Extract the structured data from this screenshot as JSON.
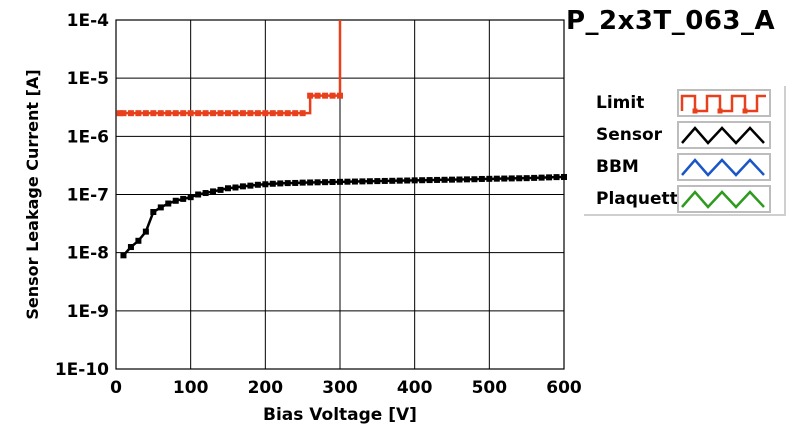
{
  "chart_data": {
    "type": "line",
    "title": "P_2x3T_063_A",
    "xlabel": "Bias Voltage [V]",
    "ylabel": "Sensor Leakage Current [A]",
    "x_scale": "linear",
    "y_scale": "log",
    "xlim": [
      0,
      600
    ],
    "ylim": [
      1e-10,
      0.0001
    ],
    "grid": true,
    "legend_position": "right",
    "x_ticks": [
      {
        "value": 0,
        "label": "0"
      },
      {
        "value": 100,
        "label": "100"
      },
      {
        "value": 200,
        "label": "200"
      },
      {
        "value": 300,
        "label": "300"
      },
      {
        "value": 400,
        "label": "400"
      },
      {
        "value": 500,
        "label": "500"
      },
      {
        "value": 600,
        "label": "600"
      }
    ],
    "y_ticks": [
      {
        "value": 0.0001,
        "label": "1E-4"
      },
      {
        "value": 1e-05,
        "label": "1E-5"
      },
      {
        "value": 1e-06,
        "label": "1E-6"
      },
      {
        "value": 1e-07,
        "label": "1E-7"
      },
      {
        "value": 1e-08,
        "label": "1E-8"
      },
      {
        "value": 1e-09,
        "label": "1E-9"
      },
      {
        "value": 1e-10,
        "label": "1E-10"
      }
    ],
    "series": [
      {
        "name": "Limit",
        "color": "#e8401c",
        "step": true,
        "points": [
          [
            5,
            2.5e-06
          ],
          [
            10,
            2.5e-06
          ],
          [
            20,
            2.5e-06
          ],
          [
            30,
            2.5e-06
          ],
          [
            40,
            2.5e-06
          ],
          [
            50,
            2.5e-06
          ],
          [
            60,
            2.5e-06
          ],
          [
            70,
            2.5e-06
          ],
          [
            80,
            2.5e-06
          ],
          [
            90,
            2.5e-06
          ],
          [
            100,
            2.5e-06
          ],
          [
            110,
            2.5e-06
          ],
          [
            120,
            2.5e-06
          ],
          [
            130,
            2.5e-06
          ],
          [
            140,
            2.5e-06
          ],
          [
            150,
            2.5e-06
          ],
          [
            160,
            2.5e-06
          ],
          [
            170,
            2.5e-06
          ],
          [
            180,
            2.5e-06
          ],
          [
            190,
            2.5e-06
          ],
          [
            200,
            2.5e-06
          ],
          [
            210,
            2.5e-06
          ],
          [
            220,
            2.5e-06
          ],
          [
            230,
            2.5e-06
          ],
          [
            240,
            2.5e-06
          ],
          [
            250,
            2.5e-06
          ],
          [
            260,
            5e-06
          ],
          [
            270,
            5e-06
          ],
          [
            280,
            5e-06
          ],
          [
            290,
            5e-06
          ],
          [
            300,
            5e-06
          ],
          [
            300,
            0.0001
          ]
        ]
      },
      {
        "name": "Sensor",
        "color": "#000000",
        "step": false,
        "points": [
          [
            10,
            9e-09
          ],
          [
            20,
            1.25e-08
          ],
          [
            30,
            1.6e-08
          ],
          [
            40,
            2.3e-08
          ],
          [
            50,
            5e-08
          ],
          [
            60,
            6e-08
          ],
          [
            70,
            7e-08
          ],
          [
            80,
            7.8e-08
          ],
          [
            90,
            8.4e-08
          ],
          [
            100,
            9e-08
          ],
          [
            110,
            1e-07
          ],
          [
            120,
            1.06e-07
          ],
          [
            130,
            1.13e-07
          ],
          [
            140,
            1.2e-07
          ],
          [
            150,
            1.28e-07
          ],
          [
            160,
            1.32e-07
          ],
          [
            170,
            1.38e-07
          ],
          [
            180,
            1.42e-07
          ],
          [
            190,
            1.47e-07
          ],
          [
            200,
            1.5e-07
          ],
          [
            210,
            1.53e-07
          ],
          [
            220,
            1.55e-07
          ],
          [
            230,
            1.57e-07
          ],
          [
            240,
            1.58e-07
          ],
          [
            250,
            1.6e-07
          ],
          [
            260,
            1.61e-07
          ],
          [
            270,
            1.62e-07
          ],
          [
            280,
            1.63e-07
          ],
          [
            290,
            1.64e-07
          ],
          [
            300,
            1.65e-07
          ],
          [
            310,
            1.66e-07
          ],
          [
            320,
            1.67e-07
          ],
          [
            330,
            1.68e-07
          ],
          [
            340,
            1.69e-07
          ],
          [
            350,
            1.7e-07
          ],
          [
            360,
            1.71e-07
          ],
          [
            370,
            1.72e-07
          ],
          [
            380,
            1.73e-07
          ],
          [
            390,
            1.74e-07
          ],
          [
            400,
            1.75e-07
          ],
          [
            410,
            1.76e-07
          ],
          [
            420,
            1.77e-07
          ],
          [
            430,
            1.78e-07
          ],
          [
            440,
            1.79e-07
          ],
          [
            450,
            1.8e-07
          ],
          [
            460,
            1.81e-07
          ],
          [
            470,
            1.82e-07
          ],
          [
            480,
            1.83e-07
          ],
          [
            490,
            1.85e-07
          ],
          [
            500,
            1.86e-07
          ],
          [
            510,
            1.87e-07
          ],
          [
            520,
            1.88e-07
          ],
          [
            530,
            1.89e-07
          ],
          [
            540,
            1.9e-07
          ],
          [
            550,
            1.91e-07
          ],
          [
            560,
            1.93e-07
          ],
          [
            570,
            1.95e-07
          ],
          [
            580,
            1.97e-07
          ],
          [
            590,
            1.99e-07
          ],
          [
            600,
            2e-07
          ]
        ]
      },
      {
        "name": "BBM",
        "color": "#1a56c8",
        "step": false,
        "points": []
      },
      {
        "name": "Plaquette",
        "color": "#2e9a1e",
        "step": false,
        "points": []
      }
    ],
    "legend_swatches": [
      "square-wave",
      "triangle-wave",
      "triangle-wave",
      "triangle-wave"
    ]
  }
}
